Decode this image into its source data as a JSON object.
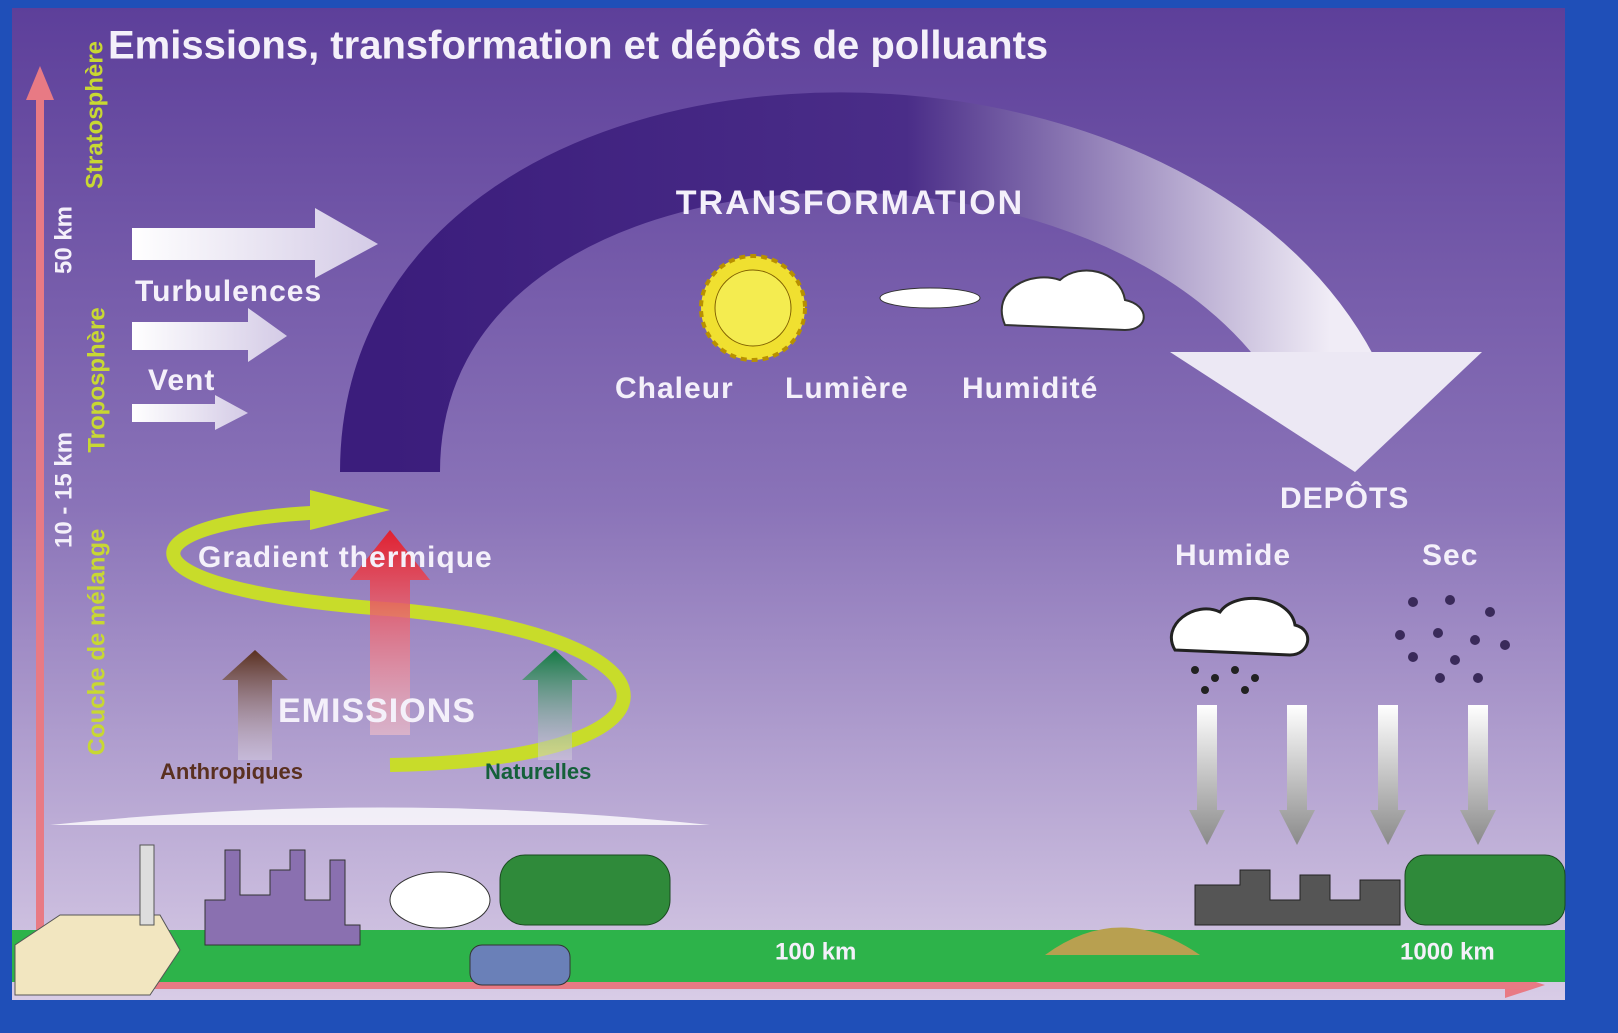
{
  "title": "Emissions, transformation et dépôts de polluants",
  "altitude": {
    "stratosphere": "Stratosphère",
    "stratosphere_height": "50 km",
    "troposphere": "Troposphère",
    "troposphere_height": "10 - 15 km",
    "mixing_layer": "Couche de mélange"
  },
  "transport": {
    "turbulence": "Turbulences",
    "wind": "Vent"
  },
  "transformation": {
    "title": "TRANSFORMATION",
    "factors": [
      "Chaleur",
      "Lumière",
      "Humidité"
    ]
  },
  "deposits": {
    "title": "DEPÔTS",
    "types": [
      "Humide",
      "Sec"
    ]
  },
  "emissions": {
    "title": "EMISSIONS",
    "gradient": "Gradient thermique",
    "sources": [
      "Anthropiques",
      "Naturelles"
    ]
  },
  "distances": [
    "100 km",
    "1000 km"
  ]
}
